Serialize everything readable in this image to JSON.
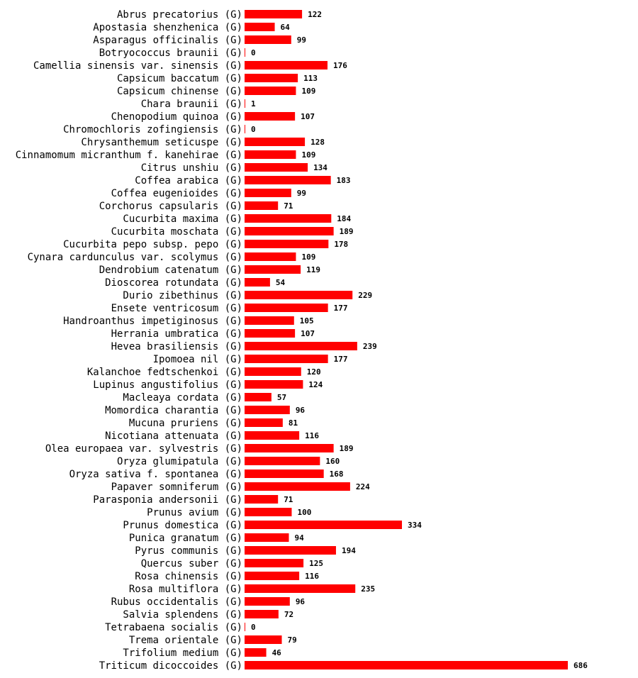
{
  "chart_data": {
    "type": "bar",
    "orientation": "horizontal",
    "title": "",
    "xlabel": "",
    "ylabel": "",
    "bar_color": "#ff0000",
    "xlim": [
      0,
      686
    ],
    "categories": [
      "Abrus precatorius (G)",
      "Apostasia shenzhenica (G)",
      "Asparagus officinalis (G)",
      "Botryococcus braunii (G)",
      "Camellia sinensis var. sinensis (G)",
      "Capsicum baccatum (G)",
      "Capsicum chinense (G)",
      "Chara braunii (G)",
      "Chenopodium quinoa (G)",
      "Chromochloris zofingiensis (G)",
      "Chrysanthemum seticuspe (G)",
      "Cinnamomum micranthum f. kanehirae (G)",
      "Citrus unshiu (G)",
      "Coffea arabica (G)",
      "Coffea eugenioides (G)",
      "Corchorus capsularis (G)",
      "Cucurbita maxima (G)",
      "Cucurbita moschata (G)",
      "Cucurbita pepo subsp. pepo (G)",
      "Cynara cardunculus var. scolymus (G)",
      "Dendrobium catenatum (G)",
      "Dioscorea rotundata (G)",
      "Durio zibethinus (G)",
      "Ensete ventricosum (G)",
      "Handroanthus impetiginosus (G)",
      "Herrania umbratica (G)",
      "Hevea brasiliensis (G)",
      "Ipomoea nil (G)",
      "Kalanchoe fedtschenkoi (G)",
      "Lupinus angustifolius (G)",
      "Macleaya cordata (G)",
      "Momordica charantia (G)",
      "Mucuna pruriens (G)",
      "Nicotiana attenuata (G)",
      "Olea europaea var. sylvestris (G)",
      "Oryza glumipatula (G)",
      "Oryza sativa f. spontanea (G)",
      "Papaver somniferum (G)",
      "Parasponia andersonii (G)",
      "Prunus avium (G)",
      "Prunus domestica (G)",
      "Punica granatum (G)",
      "Pyrus communis (G)",
      "Quercus suber (G)",
      "Rosa chinensis (G)",
      "Rosa multiflora (G)",
      "Rubus occidentalis (G)",
      "Salvia splendens (G)",
      "Tetrabaena socialis (G)",
      "Trema orientale (G)",
      "Trifolium medium (G)",
      "Triticum dicoccoides (G)"
    ],
    "values": [
      122,
      64,
      99,
      0,
      176,
      113,
      109,
      1,
      107,
      0,
      128,
      109,
      134,
      183,
      99,
      71,
      184,
      189,
      178,
      109,
      119,
      54,
      229,
      177,
      105,
      107,
      239,
      177,
      120,
      124,
      57,
      96,
      81,
      116,
      189,
      160,
      168,
      224,
      71,
      100,
      334,
      94,
      194,
      125,
      116,
      235,
      96,
      72,
      0,
      79,
      46,
      686
    ]
  }
}
